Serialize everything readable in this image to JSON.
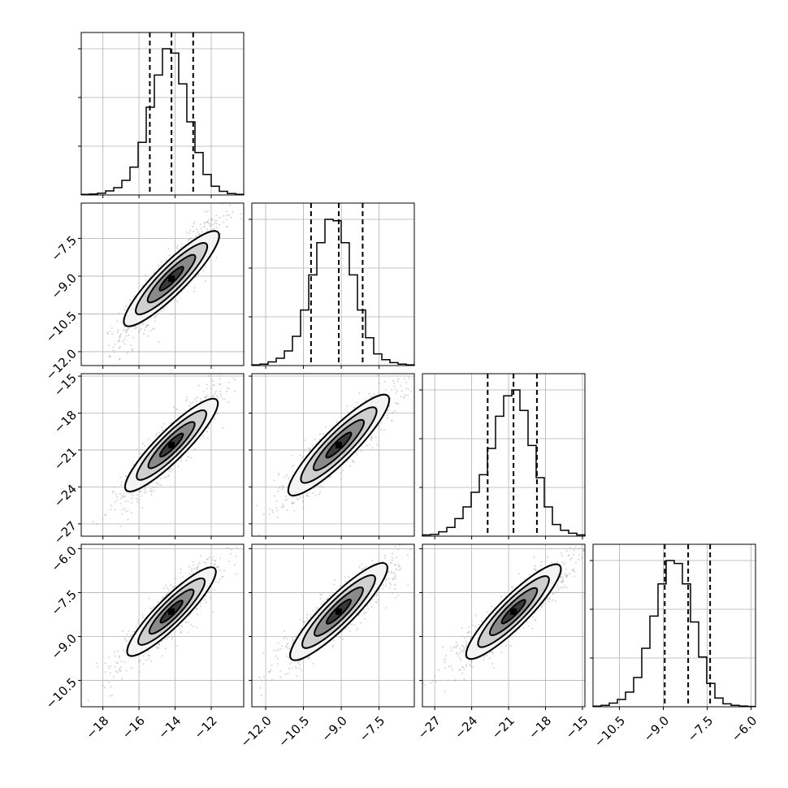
{
  "chart_data": {
    "type": "corner",
    "title": "",
    "n_params": 4,
    "grid": true,
    "colors": {
      "hist_line": "#000000",
      "quantile_line": "#000000",
      "contour_line": "#000000",
      "scatter_points": "#a0a0a0",
      "density_fill_dark": "#000000",
      "density_fill_light": "#f5f5f5",
      "grid": "#b0b0b0"
    },
    "parameters": [
      {
        "label": "",
        "range": [
          -19.2,
          -10.2
        ],
        "ticks": [
          -18,
          -16,
          -14,
          -12
        ],
        "tick_labels": [
          "−18",
          "−16",
          "−14",
          "−12"
        ],
        "quantiles": [
          -15.4,
          -14.2,
          -13.0
        ],
        "hist": [
          0.004,
          0.006,
          0.012,
          0.028,
          0.05,
          0.1,
          0.19,
          0.36,
          0.6,
          0.82,
          1.0,
          0.97,
          0.76,
          0.5,
          0.29,
          0.14,
          0.06,
          0.025,
          0.01,
          0.004
        ]
      },
      {
        "label": "",
        "range": [
          -12.55,
          -6.1
        ],
        "ticks": [
          -12.0,
          -10.5,
          -9.0,
          -7.5
        ],
        "tick_labels": [
          "−12.0",
          "−10.5",
          "−9.0",
          "−7.5"
        ],
        "quantiles": [
          -10.2,
          -9.1,
          -8.15
        ],
        "hist": [
          0.005,
          0.01,
          0.025,
          0.05,
          0.1,
          0.2,
          0.38,
          0.62,
          0.84,
          1.0,
          0.99,
          0.84,
          0.62,
          0.38,
          0.19,
          0.08,
          0.04,
          0.02,
          0.01,
          0.005
        ]
      },
      {
        "label": "",
        "range": [
          -28.0,
          -14.8
        ],
        "ticks": [
          -27,
          -24,
          -21,
          -18,
          -15
        ],
        "tick_labels": [
          "−27",
          "−24",
          "−21",
          "−18",
          "−15"
        ],
        "quantiles": [
          -22.7,
          -20.6,
          -18.7
        ],
        "hist": [
          0.008,
          0.012,
          0.03,
          0.06,
          0.12,
          0.2,
          0.3,
          0.42,
          0.6,
          0.82,
          0.96,
          1.0,
          0.86,
          0.62,
          0.4,
          0.2,
          0.08,
          0.04,
          0.02,
          0.008
        ]
      },
      {
        "label": "",
        "range": [
          -11.4,
          -5.85
        ],
        "ticks": [
          -10.5,
          -9.0,
          -7.5,
          -6.0
        ],
        "tick_labels": [
          "−10.5",
          "−9.0",
          "−7.5",
          "−6.0"
        ],
        "quantiles": [
          -8.95,
          -8.15,
          -7.4
        ],
        "hist": [
          0.004,
          0.01,
          0.025,
          0.05,
          0.1,
          0.2,
          0.4,
          0.62,
          0.84,
          1.0,
          0.98,
          0.84,
          0.58,
          0.34,
          0.16,
          0.06,
          0.02,
          0.01,
          0.005,
          0.002
        ]
      }
    ],
    "correlations": [
      [
        1.0,
        0.9,
        0.9,
        0.9
      ],
      [
        0.9,
        1.0,
        0.9,
        0.9
      ],
      [
        0.9,
        0.9,
        1.0,
        0.9
      ],
      [
        0.9,
        0.9,
        0.9,
        1.0
      ]
    ],
    "contour_levels_sigma": [
      0.5,
      1.0,
      1.5,
      2.0
    ]
  }
}
